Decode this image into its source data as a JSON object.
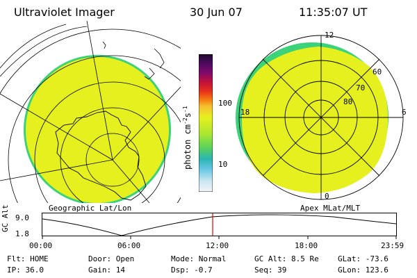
{
  "header": {
    "instrument": "Ultraviolet Imager",
    "date": "30 Jun 07",
    "time": "11:35:07 UT"
  },
  "colors": {
    "fill": "#e6f01e",
    "rim": "#3cd27a",
    "line": "#000000",
    "marker": "#e00000"
  },
  "left_panel": {
    "title": "Geographic Lat/Lon"
  },
  "right_panel": {
    "title": "Apex MLat/MLT",
    "mlt_labels": {
      "top": "12",
      "left": "18",
      "right": "6",
      "bottom": "0"
    },
    "lat_labels": [
      "60",
      "70",
      "80"
    ]
  },
  "colorbar": {
    "label": "photon cm",
    "sup1": "-2",
    "mid": "s",
    "sup2": "-1",
    "ticks": [
      "100",
      "10"
    ],
    "stops": [
      "#1a0a2a",
      "#4a0a5a",
      "#7a0a6e",
      "#c0103a",
      "#e8301a",
      "#f47a10",
      "#f5c030",
      "#e6f01e",
      "#a8e632",
      "#5ad25a",
      "#2ab4b4",
      "#6ac8e6",
      "#c8e6f0",
      "#f0f4f8"
    ]
  },
  "altitude_plot": {
    "ylabel": "GC Alt",
    "y_ticks": [
      "9.0",
      "1.8"
    ],
    "x_ticks": [
      "00:00",
      "06:00",
      "12:00",
      "18:00",
      "23:59"
    ]
  },
  "status": {
    "flt": "Flt: HOME",
    "ip": "IP: 36.0",
    "door": "Door: Open",
    "gain": "Gain: 14",
    "mode": "Mode: Normal",
    "dsp": "Dsp:    -0.7",
    "gcalt": "GC Alt: 8.5 Re",
    "seq": "Seq: 39",
    "glat": "GLat: -73.6",
    "glon": "GLon: 123.6"
  }
}
